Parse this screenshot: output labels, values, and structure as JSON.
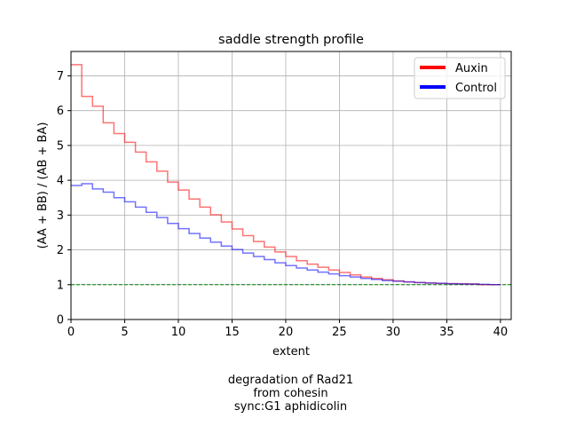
{
  "chart_data": {
    "type": "line",
    "drawstyle": "steps",
    "title": "saddle strength profile",
    "xlabel": "extent",
    "ylabel": "(AA + BB) / (AB + BA)",
    "xlim": [
      0,
      41
    ],
    "ylim": [
      0,
      7.7
    ],
    "xticks": [
      0,
      5,
      10,
      15,
      20,
      25,
      30,
      35,
      40
    ],
    "yticks": [
      0,
      1,
      2,
      3,
      4,
      5,
      6,
      7
    ],
    "grid": true,
    "legend_position": "top-right",
    "reference_line": {
      "y": 1,
      "color": "#008000",
      "style": "dashed"
    },
    "series": [
      {
        "name": "Auxin",
        "color": "#ff0000",
        "x": [
          0,
          1,
          2,
          3,
          4,
          5,
          6,
          7,
          8,
          9,
          10,
          11,
          12,
          13,
          14,
          15,
          16,
          17,
          18,
          19,
          20,
          21,
          22,
          23,
          24,
          25,
          26,
          27,
          28,
          29,
          30,
          31,
          32,
          33,
          34,
          35,
          36,
          37,
          38,
          39
        ],
        "values": [
          7.32,
          6.41,
          6.13,
          5.65,
          5.34,
          5.09,
          4.81,
          4.53,
          4.26,
          3.95,
          3.72,
          3.46,
          3.23,
          3.01,
          2.8,
          2.6,
          2.41,
          2.24,
          2.08,
          1.94,
          1.81,
          1.69,
          1.59,
          1.5,
          1.42,
          1.35,
          1.28,
          1.22,
          1.18,
          1.14,
          1.11,
          1.08,
          1.06,
          1.05,
          1.04,
          1.03,
          1.03,
          1.02,
          1.0,
          1.0
        ]
      },
      {
        "name": "Control",
        "color": "#0000ff",
        "x": [
          0,
          1,
          2,
          3,
          4,
          5,
          6,
          7,
          8,
          9,
          10,
          11,
          12,
          13,
          14,
          15,
          16,
          17,
          18,
          19,
          20,
          21,
          22,
          23,
          24,
          25,
          26,
          27,
          28,
          29,
          30,
          31,
          32,
          33,
          34,
          35,
          36,
          37,
          38,
          39
        ],
        "values": [
          3.85,
          3.9,
          3.75,
          3.66,
          3.5,
          3.38,
          3.23,
          3.08,
          2.93,
          2.76,
          2.61,
          2.47,
          2.34,
          2.22,
          2.11,
          2.01,
          1.91,
          1.81,
          1.72,
          1.63,
          1.55,
          1.48,
          1.42,
          1.36,
          1.31,
          1.26,
          1.22,
          1.18,
          1.15,
          1.12,
          1.1,
          1.08,
          1.06,
          1.05,
          1.04,
          1.03,
          1.02,
          1.02,
          1.01,
          1.0
        ]
      }
    ]
  },
  "caption": {
    "line1": "degradation of Rad21",
    "line2": "from cohesin",
    "line3": "sync:G1 aphidicolin"
  }
}
